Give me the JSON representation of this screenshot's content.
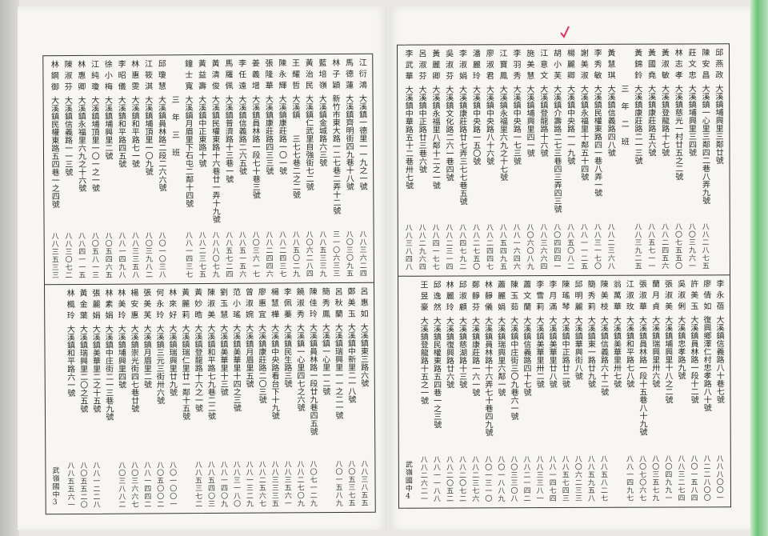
{
  "colors": {
    "ink": "#2a2a2a",
    "paper": "#f7f6f2",
    "edge": "#6fc27a",
    "check_mark": "#e0305a"
  },
  "pages": [
    {
      "footer": {
        "school": "武嶺國中",
        "page_no": "3"
      },
      "top": [
        {
          "name": "江衍鴻",
          "address": "大溪鎮一德里一一九之一號",
          "phone": "八八三六二四"
        },
        {
          "name": "馬德蓮",
          "address": "大溪鎮齊明街四九巷十八號",
          "phone": "八〇三〇九五"
        },
        {
          "name": "林子穎",
          "address": "新竹市東大路一二七巷二弄十二號",
          "phone": "三一〇六三三"
        },
        {
          "name": "藍培嶺",
          "address": "大溪鎮金城路六三號",
          "phone": "八八五三三九"
        },
        {
          "name": "黃治民",
          "address": "大溪鎮仁武里自強街七二號",
          "phone": "八〇六二八四"
        },
        {
          "name": "王耀哲",
          "address": "大溪鎮　　三七七巷二之二號",
          "phone": "八八五〇二九"
        },
        {
          "name": "陳永輝",
          "address": "大溪鎮康莊路一〇一號",
          "phone": "八八二四三七"
        },
        {
          "name": "張隆華",
          "address": "大溪鎮康莊路四三三號",
          "phone": "八八二四四六"
        },
        {
          "name": "姜義增",
          "address": "大溪鎮員林路一段七十巷三號",
          "phone": "八〇三六一七"
        },
        {
          "name": "李任遠",
          "address": "大溪鎮信義路二六五號",
          "phone": "八八五一五六"
        },
        {
          "name": "馬羅佩",
          "address": "大溪鎮普濟路十三巷一號",
          "phone": "八八五七二四"
        },
        {
          "name": "黃清俊",
          "address": "大溪鎮民權東路十六巷廿一弄十九號",
          "phone": "八八八〇七九"
        },
        {
          "name": "黃益壽",
          "address": "大溪鎮中正東路十號",
          "phone": "八八二三七五"
        },
        {
          "name": "鐘士寬",
          "address": "大溪鎮月眉里下石屯二鄰十四號",
          "phone": "八八一四三七"
        },
        {
          "heading": "三年三班"
        },
        {
          "name": "邱瓊慧",
          "address": "大溪鎮員林路二段二六六號",
          "phone": "八〇一〇三八"
        },
        {
          "name": "江筱淇",
          "address": "大溪鎮埔頂里一〇九號",
          "phone": "八〇三九八二"
        },
        {
          "name": "林惠雯",
          "address": "大溪鎮和平路七一號",
          "phone": "八八三三五八"
        },
        {
          "name": "李昭儀",
          "address": "大溪鎮和平路四五號",
          "phone": "八八一四九八"
        },
        {
          "name": "徐小梅",
          "address": "大溪鎮埔興里二號",
          "phone": "八〇五四六五"
        },
        {
          "name": "江純瓊",
          "address": "大溪鎮埔頂里一〇一之一號",
          "phone": "八〇五八一三"
        },
        {
          "name": "林惠卿",
          "address": "大溪鎮永福里六九之十六號",
          "phone": "八八四一一五"
        },
        {
          "name": "陳淑芬",
          "address": "大溪鎮信義路一一三號",
          "phone": "八八三〇七二"
        },
        {
          "name": "林鋼御",
          "address": "大溪鎮民權東路五四巷一之四號",
          "phone": "八八三五三三"
        }
      ],
      "bottom": [
        {
          "name": "呂惠如",
          "address": "大溪鎮東三路六號",
          "phone": "八八三八五五"
        },
        {
          "name": "鄭美玉",
          "address": "大溪鎮中新里二一八號",
          "phone": "八〇五三七五"
        },
        {
          "name": "呂秋蘭",
          "address": "大溪鎮瑞興里一一之二一號",
          "phone": "八〇一五八九"
        },
        {
          "name": "簡秀鳳",
          "address": "大溪鎮一心里一二號",
          "phone": ""
        },
        {
          "name": "陳佳玲",
          "address": "大溪鎮員林路一段廿九巷四五號",
          "phone": "八〇七一二九"
        },
        {
          "name": "饒淑秀",
          "address": "大溪鎮一心里四七之六號",
          "phone": "八八二七〇九"
        },
        {
          "name": "李佩蓁",
          "address": "大溪鎮民生路三號",
          "phone": "八八三五六一"
        },
        {
          "name": "楊慧樺",
          "address": "大溪鎮中央路看台下十九號",
          "phone": "八八三三三五"
        },
        {
          "name": "廖惠宜",
          "address": "大溪鎮康莊路二〇三號",
          "phone": "八八二五六七"
        },
        {
          "name": "曾淑婉",
          "address": "大溪鎮月眉里五號",
          "phone": "八八一三二九"
        },
        {
          "name": "范小瑤",
          "address": "大溪鎮美華里十四之三號",
          "phone": "八八三一八〇"
        },
        {
          "name": "劉玉慧",
          "address": "大溪鎮美華里十三號",
          "phone": "八八一四〇九"
        },
        {
          "name": "陳淑美",
          "address": "大溪鎮和平路七九巷二二號",
          "phone": "八八五四〇三"
        },
        {
          "name": "黃妙晧",
          "address": "大溪鎮登龍路十六之一號",
          "phone": "八八五三七二"
        },
        {
          "name": "黃麗莉",
          "address": "大溪鎮瑞仁里廿一鄰十五號",
          "phone": ""
        },
        {
          "name": "林來好",
          "address": "大溪鎮瑞興里廿九號",
          "phone": "八〇一〇〇一"
        },
        {
          "name": "何永玲",
          "address": "大溪鎮三元三街卅六號",
          "phone": "八〇五〇〇二"
        },
        {
          "name": "張美芙",
          "address": "大溪鎮月眉里二號",
          "phone": "八八一四四二"
        },
        {
          "name": "楊安惠",
          "address": "大溪鎮崇光街四七巷廿號",
          "phone": "八〇三六六七"
        },
        {
          "name": "林美玲",
          "address": "大溪鎮埔興里四號",
          "phone": "八〇三八八二"
        },
        {
          "name": "林素娟",
          "address": "大溪鎮中庄街二一三巷九號",
          "phone": ""
        },
        {
          "name": "張麗娟",
          "address": "大溪鎮美華里二之十五號",
          "phone": "八八一二二八"
        },
        {
          "name": "黃金葉",
          "address": "大溪鎮瑞興里二〇之五號",
          "phone": "八〇五五二〇"
        },
        {
          "name": "林楓玲",
          "address": "大溪鎮和平路六一號",
          "phone": "八八五五六一"
        }
      ]
    },
    {
      "footer": {
        "school": "武嶺國中",
        "page_no": "4"
      },
      "top": [
        {
          "name": "邱燕政",
          "address": "大溪鎮埔興里三鄰廿號",
          "phone": ""
        },
        {
          "name": "陳安昌",
          "address": "大溪鎮一心里三鄰四二巷八弄九號",
          "phone": "八八二八七五"
        },
        {
          "name": "莊文忠",
          "address": "大溪鎮埔興里三四號",
          "phone": "八〇三九六一"
        },
        {
          "name": "林志孝",
          "address": "大溪鎮慈光一村廿五之二號",
          "phone": "八〇七五五〇"
        },
        {
          "name": "黃淑敏",
          "address": "大溪鎮登龍路十七號",
          "phone": "八八二四五六"
        },
        {
          "name": "黃國堯",
          "address": "大溪鎮康莊路五六號",
          "phone": "八八五七一一"
        },
        {
          "name": "黃錦鈴",
          "address": "大溪鎮康莊路二一三號",
          "phone": "八八三九二五"
        },
        {
          "heading": "三年二班"
        },
        {
          "name": "黃慧琪",
          "address": "大溪鎮信義路四八號",
          "phone": "八八二三六八"
        },
        {
          "name": "李秀敏",
          "address": "大溪鎮民權東路四一巷八弄一號",
          "phone": "八八三一七〇"
        },
        {
          "name": "謝美淑",
          "address": "大溪鎮永福里十鄰五十四號",
          "phone": "八八一一二五"
        },
        {
          "name": "楊麗卿",
          "address": "大溪鎮中央路一一九號",
          "phone": "八八五〇八二",
          "checked": true
        },
        {
          "name": "胡小芙",
          "address": "大溪鎮介壽路二七三巷四三弄四三號",
          "phone": "八〇四四四一"
        },
        {
          "name": "江意文",
          "address": "大溪鎮登龍路十六號",
          "phone": "八八三六六四"
        },
        {
          "name": "施美慧",
          "address": "大溪鎮埔興里四一號",
          "phone": "八〇六〇八九"
        },
        {
          "name": "李羽秀",
          "address": "大溪鎮中央路一七三號",
          "phone": "八八一六四六"
        },
        {
          "name": "江寶鳳",
          "address": "大溪鎮永福里六九之十七號",
          "phone": "八八五四九五"
        },
        {
          "name": "廖淑君",
          "address": "大溪鎮中央路八十六號",
          "phone": "八八二四四七"
        },
        {
          "name": "潘麗玲",
          "address": "大溪鎮中央路一五〇號",
          "phone": "八八二七五〇"
        },
        {
          "name": "李淑娟",
          "address": "大溪鎮康莊路廿七弄三七七巷五號",
          "phone": "八八四七九二"
        },
        {
          "name": "吳淑芬",
          "address": "大溪鎮文化路二六一巷四號",
          "phone": "八八二三一四"
        },
        {
          "name": "黃麗卿",
          "address": "大溪鎮永福里八鄰十二之一號",
          "phone": "八八四一七七"
        },
        {
          "name": "呂淑芬",
          "address": "大溪鎮中正路廿三巷六號",
          "phone": "八八二九六四"
        },
        {
          "name": "李武華",
          "address": "大溪鎮中華路五十二巷卅七號",
          "phone": "八八三八四八"
        }
      ],
      "bottom": [
        {
          "name": "李永蓓",
          "address": "大溪鎮信義路八十巷七號",
          "phone": "八八八〇〇一"
        },
        {
          "name": "廖倩如",
          "address": "復興鄉澤仁村忠孝路八十號",
          "phone": "八二二八〇〇"
        },
        {
          "name": "許美玉",
          "address": "大溪鎮員林路一段十二號",
          "phone": "八〇一五八四"
        },
        {
          "name": "吳淑俐",
          "address": "大溪鎮忠孝路九號",
          "phone": "八八三二七四"
        },
        {
          "name": "張淑美",
          "address": "大溪鎮埔興里十八之二號",
          "phone": "八〇四九九一"
        },
        {
          "name": "蘭月貞",
          "address": "大溪鎮瑞興里卅六號",
          "phone": "八〇三五七九"
        },
        {
          "name": "張淑華",
          "address": "大溪鎮員林路一段十五巷八十九號",
          "phone": "八〇七〇六七"
        },
        {
          "name": "江淑玫",
          "address": "大溪鎮和平路七八號",
          "phone": "八八一四九七"
        },
        {
          "name": "翁萬華",
          "address": "大溪鎮美華里卅七號",
          "phone": ""
        },
        {
          "name": "陳美枝",
          "address": "大溪鎮信義路六十二號",
          "phone": "八八五八二七"
        },
        {
          "name": "簡秀莉",
          "address": "大溪鎮東一路廿九號",
          "phone": "八八五九五八"
        },
        {
          "name": "邱明麗",
          "address": "大溪鎮華興街八號",
          "phone": "八〇六二三三"
        },
        {
          "name": "陳瑤琴",
          "address": "大溪鎮中正路廿二號",
          "phone": "八八五七四三"
        },
        {
          "name": "李月滿",
          "address": "大溪鎮美華里廿八號",
          "phone": "八八一四七四"
        },
        {
          "name": "李雪莉",
          "address": "大溪鎮美華里卅二號",
          "phone": "八八三三八一"
        },
        {
          "name": "蕭文蘭",
          "address": "大溪鎮信義路四十七號",
          "phone": "八八二一四二"
        },
        {
          "name": "陳玉茹",
          "address": "大溪鎮中庄街三〇九巷六一號",
          "phone": "八〇三三〇八"
        },
        {
          "name": "蕭麗娟",
          "address": "大溪鎮瑞興里六鄰一號",
          "phone": "八〇一八八九"
        },
        {
          "name": "林靜儀",
          "address": "大溪鎮員林路十六弄七十巷四九號",
          "phone": "八〇一三一〇"
        },
        {
          "name": "鄭靜芬",
          "address": "大溪鎮康莊路一六一號",
          "phone": "八八二三七六"
        },
        {
          "name": "邱淑顧",
          "address": "大溪鎮慈湖路十三號",
          "phone": "八八二〇七二"
        },
        {
          "name": "林麗玲",
          "address": "大溪鎮復興路廿六號",
          "phone": "八八二〇五二"
        },
        {
          "name": "邱逸然",
          "address": "大溪鎮民權東路五四巷一之三號",
          "phone": "八八一一八八"
        },
        {
          "name": "王昱豪",
          "address": "大溪鎮登龍路十五之一號",
          "phone": "八八二六二一"
        }
      ]
    }
  ]
}
